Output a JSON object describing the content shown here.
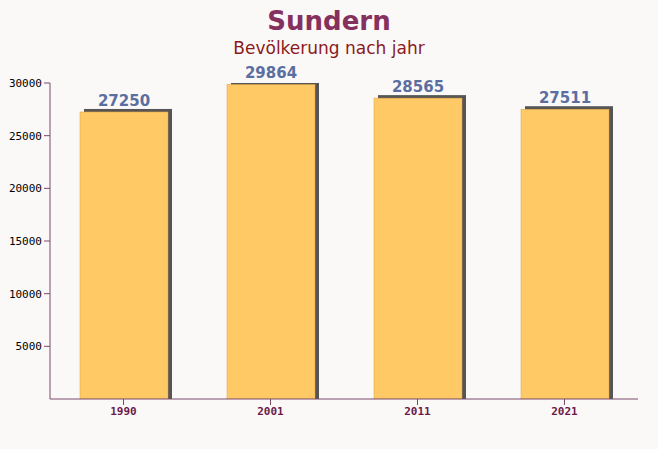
{
  "chart_data": {
    "type": "bar",
    "title": "Sundern",
    "subtitle": "Bevölkerung nach jahr",
    "categories": [
      "1990",
      "2001",
      "2011",
      "2021"
    ],
    "values": [
      27250,
      29864,
      28565,
      27511
    ],
    "color": "#ffc966",
    "ylim": [
      0,
      30000
    ],
    "yticks": [
      5000,
      10000,
      15000,
      20000,
      25000,
      30000
    ],
    "grid": false,
    "data_labels": true
  }
}
